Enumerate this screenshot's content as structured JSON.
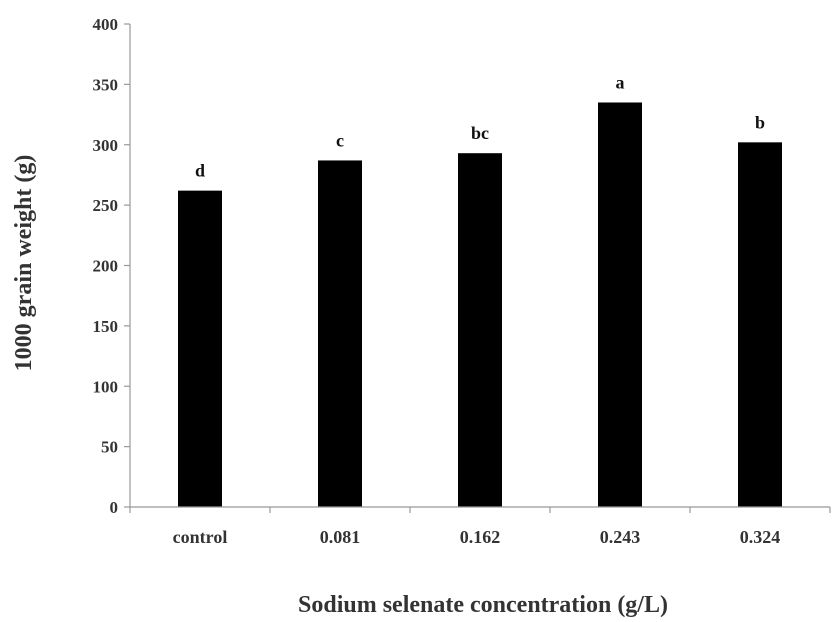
{
  "chart_data": {
    "type": "bar",
    "title": "",
    "xlabel": "Sodium selenate concentration (g/L)",
    "ylabel": "1000 grain weight (g)",
    "ylim": [
      0,
      400
    ],
    "yticks": [
      0,
      50,
      100,
      150,
      200,
      250,
      300,
      350,
      400
    ],
    "categories": [
      "control",
      "0.081",
      "0.162",
      "0.243",
      "0.324"
    ],
    "values": [
      262,
      287,
      293,
      335,
      302
    ],
    "significance_letters": [
      "d",
      "c",
      "bc",
      "a",
      "b"
    ],
    "grid": false,
    "legend": "none",
    "colors": {
      "bar": "#000000",
      "axis": "#999999",
      "text": "#333333"
    }
  }
}
